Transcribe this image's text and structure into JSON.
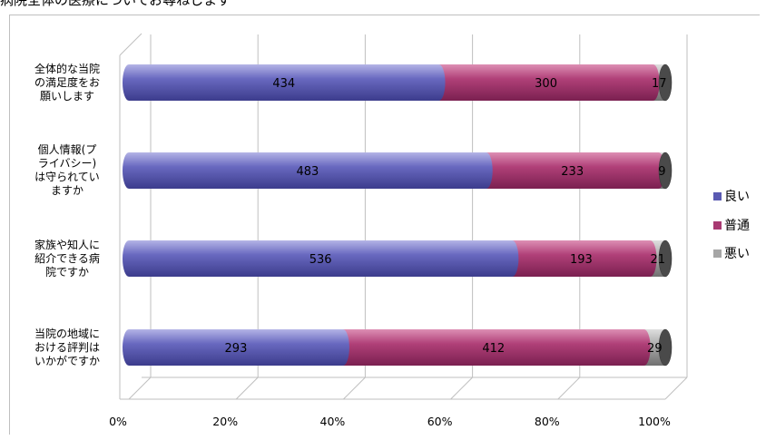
{
  "title": "病院全体の医療についてお尋ねします",
  "chart_data": {
    "type": "bar",
    "orientation": "horizontal",
    "stacked": "percent",
    "categories": [
      "全体的な当院の満足度をお願いします",
      "個人情報(プライバシー)は守られていますか",
      "家族や知人に紹介できる病院ですか",
      "当院の地域における評判はいかがですか"
    ],
    "category_lines": [
      [
        "全体的な当院",
        "の満足度をお",
        "願いします"
      ],
      [
        "個人情報(プ",
        "ライバシー)",
        "は守られてい",
        "ますか"
      ],
      [
        "家族や知人に",
        "紹介できる病",
        "院ですか"
      ],
      [
        "当院の地域に",
        "おける評判は",
        "いかがですか"
      ]
    ],
    "series": [
      {
        "name": "良い",
        "values": [
          434,
          483,
          536,
          293
        ],
        "color": "#5a5ab2"
      },
      {
        "name": "普通",
        "values": [
          300,
          233,
          193,
          412
        ],
        "color": "#a83a72"
      },
      {
        "name": "悪い",
        "values": [
          17,
          9,
          21,
          29
        ],
        "color": "#a6a6a6"
      }
    ],
    "x_ticks": [
      "0%",
      "20%",
      "40%",
      "60%",
      "80%",
      "100%"
    ],
    "xlim": [
      0,
      100
    ],
    "grid": true,
    "legend": "right"
  }
}
